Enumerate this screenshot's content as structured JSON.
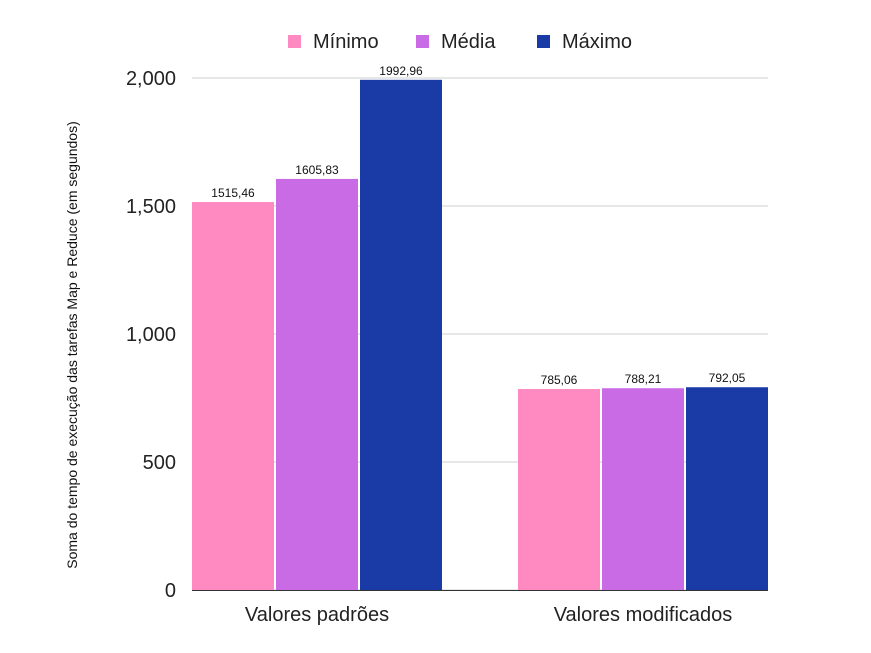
{
  "chart_data": {
    "type": "bar",
    "categories": [
      "Valores padrões",
      "Valores modificados"
    ],
    "series": [
      {
        "name": "Mínimo",
        "color": "#FF8AC2",
        "values": [
          1515.46,
          785.06
        ],
        "labels": [
          "1515,46",
          "785,06"
        ]
      },
      {
        "name": "Média",
        "color": "#CA6BE6",
        "values": [
          1605.83,
          788.21
        ],
        "labels": [
          "1605,83",
          "788,21"
        ]
      },
      {
        "name": "Máximo",
        "color": "#1A3AA6",
        "values": [
          1992.96,
          792.05
        ],
        "labels": [
          "1992,96",
          "792,05"
        ]
      }
    ],
    "ylabel": "Soma do tempo de execução das tarefas Map e Reduce (em segundos)",
    "ylim": [
      0,
      2000
    ],
    "yticks": [
      0,
      500,
      1000,
      1500,
      2000
    ],
    "ytick_labels": [
      "0",
      "500",
      "1,000",
      "1,500",
      "2,000"
    ],
    "grid": true,
    "legend_position": "top-center"
  }
}
